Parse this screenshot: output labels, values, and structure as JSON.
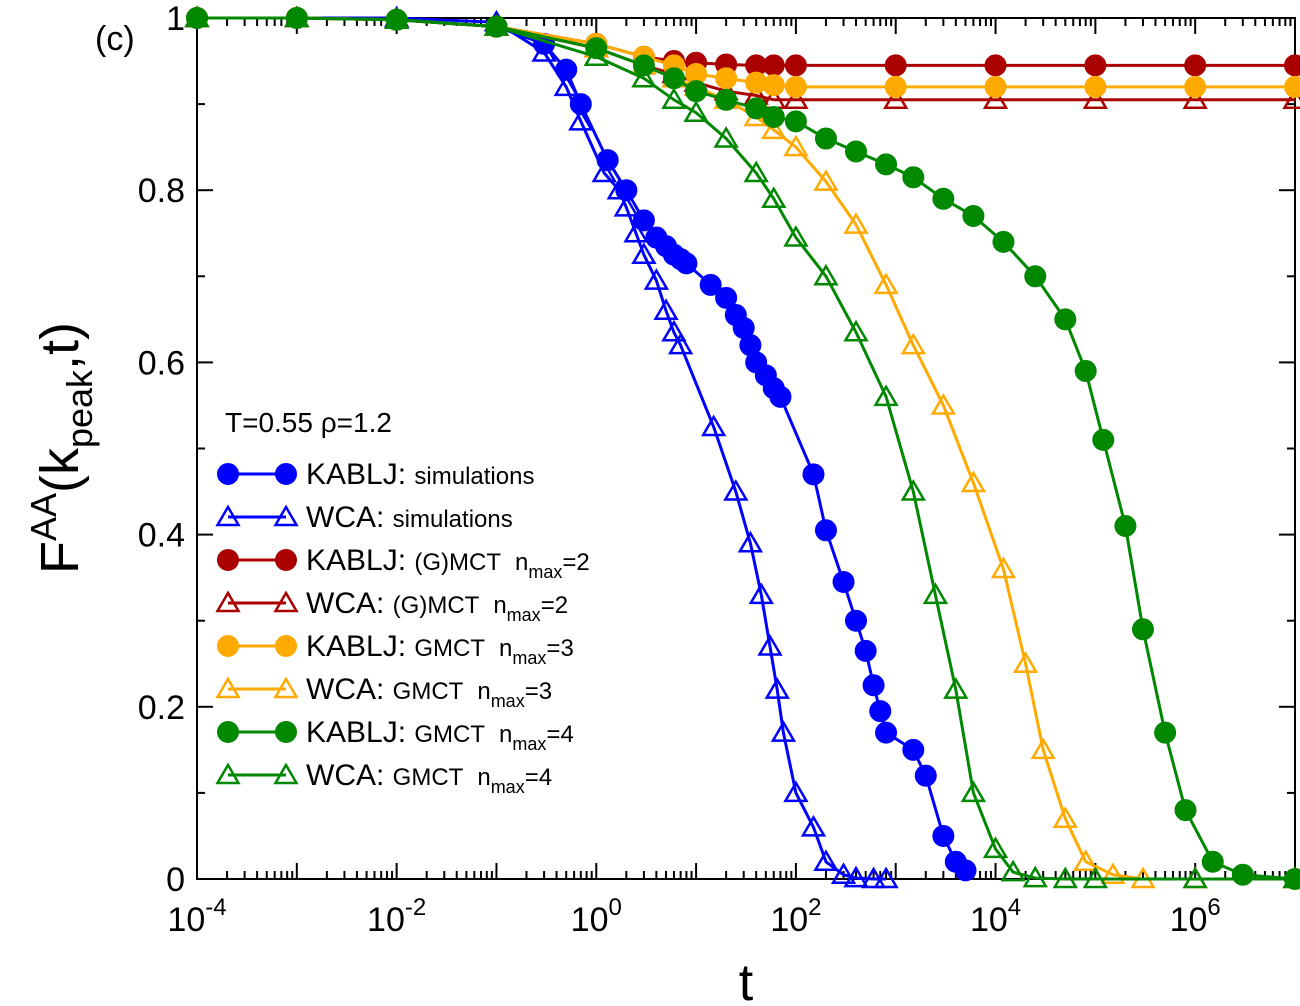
{
  "chart_data": {
    "type": "line",
    "panel_label": "(c)",
    "xlabel": "t",
    "ylabel": {
      "main": "F",
      "sup": "AA",
      "open": "(k",
      "sub": "peak",
      "close": ",t)"
    },
    "xscale": "log",
    "xlim": [
      0.0001,
      10000000
    ],
    "ylim": [
      0,
      1
    ],
    "grid": false,
    "x_ticks": [
      {
        "base": "10",
        "exp": "-4"
      },
      {
        "base": "10",
        "exp": "-2"
      },
      {
        "base": "10",
        "exp": "0"
      },
      {
        "base": "10",
        "exp": "2"
      },
      {
        "base": "10",
        "exp": "4"
      },
      {
        "base": "10",
        "exp": "6"
      }
    ],
    "y_ticks": [
      "0",
      "0.2",
      "0.4",
      "0.6",
      "0.8",
      "1"
    ],
    "legend_header": "T=0.55  ρ=1.2",
    "legend_position": "lower-left",
    "series": [
      {
        "name": {
          "model": "KABLJ:",
          "method": "simulations",
          "nsub": "",
          "nval": ""
        },
        "color": "#0000ff",
        "marker": "circle",
        "filled": true,
        "x": [
          0.0001,
          0.001,
          0.01,
          0.1,
          0.3,
          0.5,
          0.7,
          1.3,
          2,
          3,
          4,
          5,
          6,
          7,
          8,
          14,
          20,
          25,
          30,
          35,
          40,
          50,
          60,
          70,
          150,
          200,
          300,
          400,
          500,
          600,
          700,
          800,
          1500,
          2000,
          3000,
          4000,
          5000
        ],
        "y": [
          1.0,
          1.0,
          0.998,
          0.99,
          0.97,
          0.94,
          0.9,
          0.835,
          0.8,
          0.765,
          0.745,
          0.735,
          0.725,
          0.72,
          0.715,
          0.69,
          0.675,
          0.655,
          0.64,
          0.62,
          0.6,
          0.585,
          0.57,
          0.56,
          0.47,
          0.405,
          0.345,
          0.3,
          0.265,
          0.225,
          0.195,
          0.17,
          0.15,
          0.12,
          0.05,
          0.02,
          0.01
        ]
      },
      {
        "name": {
          "model": "WCA:",
          "method": "simulations",
          "nsub": "",
          "nval": ""
        },
        "color": "#0000ff",
        "marker": "triangle",
        "filled": false,
        "x": [
          0.0001,
          0.001,
          0.01,
          0.1,
          0.3,
          0.5,
          0.7,
          1.2,
          1.7,
          2,
          2.5,
          3,
          4,
          5,
          6,
          7,
          15,
          25,
          35,
          45,
          55,
          65,
          75,
          100,
          150,
          200,
          300,
          400,
          600,
          800
        ],
        "y": [
          1.0,
          1.0,
          1.0,
          0.995,
          0.96,
          0.92,
          0.88,
          0.82,
          0.8,
          0.78,
          0.75,
          0.725,
          0.695,
          0.66,
          0.635,
          0.62,
          0.525,
          0.45,
          0.39,
          0.33,
          0.27,
          0.22,
          0.17,
          0.1,
          0.06,
          0.02,
          0.005,
          0.001,
          0.0,
          0.0
        ]
      },
      {
        "name": {
          "model": "KABLJ:",
          "method": "(G)MCT",
          "nsub": "max",
          "nval": "=2"
        },
        "color": "#aa0000",
        "marker": "circle",
        "filled": true,
        "x": [
          0.0001,
          0.001,
          0.01,
          0.1,
          1,
          3,
          6,
          10,
          20,
          40,
          60,
          100,
          1000,
          10000,
          100000,
          1000000,
          10000000
        ],
        "y": [
          1.0,
          1.0,
          0.998,
          0.99,
          0.97,
          0.955,
          0.95,
          0.948,
          0.946,
          0.945,
          0.945,
          0.945,
          0.945,
          0.945,
          0.945,
          0.945,
          0.945
        ]
      },
      {
        "name": {
          "model": "WCA:",
          "method": "(G)MCT",
          "nsub": "max",
          "nval": "=2"
        },
        "color": "#aa0000",
        "marker": "triangle",
        "filled": false,
        "x": [
          0.0001,
          0.001,
          0.01,
          0.1,
          1,
          3,
          6,
          10,
          20,
          40,
          60,
          100,
          1000,
          10000,
          100000,
          1000000,
          10000000
        ],
        "y": [
          1.0,
          1.0,
          0.998,
          0.99,
          0.965,
          0.945,
          0.935,
          0.925,
          0.915,
          0.91,
          0.905,
          0.905,
          0.905,
          0.905,
          0.905,
          0.905,
          0.905
        ]
      },
      {
        "name": {
          "model": "KABLJ:",
          "method": "GMCT",
          "nsub": "max",
          "nval": "=3"
        },
        "color": "#ffaa00",
        "marker": "circle",
        "filled": true,
        "x": [
          0.0001,
          0.001,
          0.01,
          0.1,
          1,
          3,
          6,
          10,
          20,
          40,
          60,
          100,
          1000,
          10000,
          100000,
          1000000,
          10000000
        ],
        "y": [
          1.0,
          1.0,
          0.998,
          0.99,
          0.97,
          0.955,
          0.945,
          0.935,
          0.93,
          0.925,
          0.922,
          0.92,
          0.92,
          0.92,
          0.92,
          0.92,
          0.92
        ]
      },
      {
        "name": {
          "model": "WCA:",
          "method": "GMCT",
          "nsub": "max",
          "nval": "=3"
        },
        "color": "#ffaa00",
        "marker": "triangle",
        "filled": false,
        "x": [
          0.0001,
          0.001,
          0.01,
          0.1,
          1,
          3,
          6,
          10,
          20,
          40,
          60,
          100,
          200,
          400,
          800,
          1500,
          3000,
          6000,
          12000,
          20000,
          30000,
          50000,
          80000,
          150000,
          300000,
          1000000,
          10000000
        ],
        "y": [
          1.0,
          1.0,
          0.998,
          0.99,
          0.965,
          0.945,
          0.93,
          0.92,
          0.905,
          0.885,
          0.87,
          0.85,
          0.81,
          0.76,
          0.69,
          0.62,
          0.55,
          0.46,
          0.36,
          0.25,
          0.15,
          0.07,
          0.02,
          0.005,
          0.0,
          0.0,
          0.0
        ]
      },
      {
        "name": {
          "model": "KABLJ:",
          "method": "GMCT",
          "nsub": "max",
          "nval": "=4"
        },
        "color": "#008800",
        "marker": "circle",
        "filled": true,
        "x": [
          0.0001,
          0.001,
          0.01,
          0.1,
          1,
          3,
          6,
          10,
          20,
          40,
          60,
          100,
          200,
          400,
          800,
          1500,
          3000,
          6000,
          12000,
          25000,
          50000,
          80000,
          120000,
          200000,
          300000,
          500000,
          800000,
          1500000,
          3000000,
          10000000
        ],
        "y": [
          1.0,
          1.0,
          0.998,
          0.99,
          0.965,
          0.945,
          0.93,
          0.915,
          0.905,
          0.895,
          0.885,
          0.88,
          0.86,
          0.845,
          0.83,
          0.815,
          0.79,
          0.77,
          0.74,
          0.7,
          0.65,
          0.59,
          0.51,
          0.41,
          0.29,
          0.17,
          0.08,
          0.02,
          0.005,
          0.0
        ]
      },
      {
        "name": {
          "model": "WCA:",
          "method": "GMCT",
          "nsub": "max",
          "nval": "=4"
        },
        "color": "#008800",
        "marker": "triangle",
        "filled": false,
        "x": [
          0.0001,
          0.001,
          0.01,
          0.1,
          1,
          3,
          6,
          10,
          20,
          40,
          60,
          100,
          200,
          400,
          800,
          1500,
          2500,
          4000,
          6000,
          10000,
          15000,
          25000,
          50000,
          100000,
          1000000,
          10000000
        ],
        "y": [
          1.0,
          1.0,
          0.998,
          0.99,
          0.955,
          0.93,
          0.905,
          0.89,
          0.86,
          0.82,
          0.79,
          0.745,
          0.7,
          0.635,
          0.56,
          0.45,
          0.33,
          0.22,
          0.1,
          0.035,
          0.008,
          0.001,
          0.0,
          0.0,
          0.0,
          0.0
        ]
      }
    ]
  }
}
